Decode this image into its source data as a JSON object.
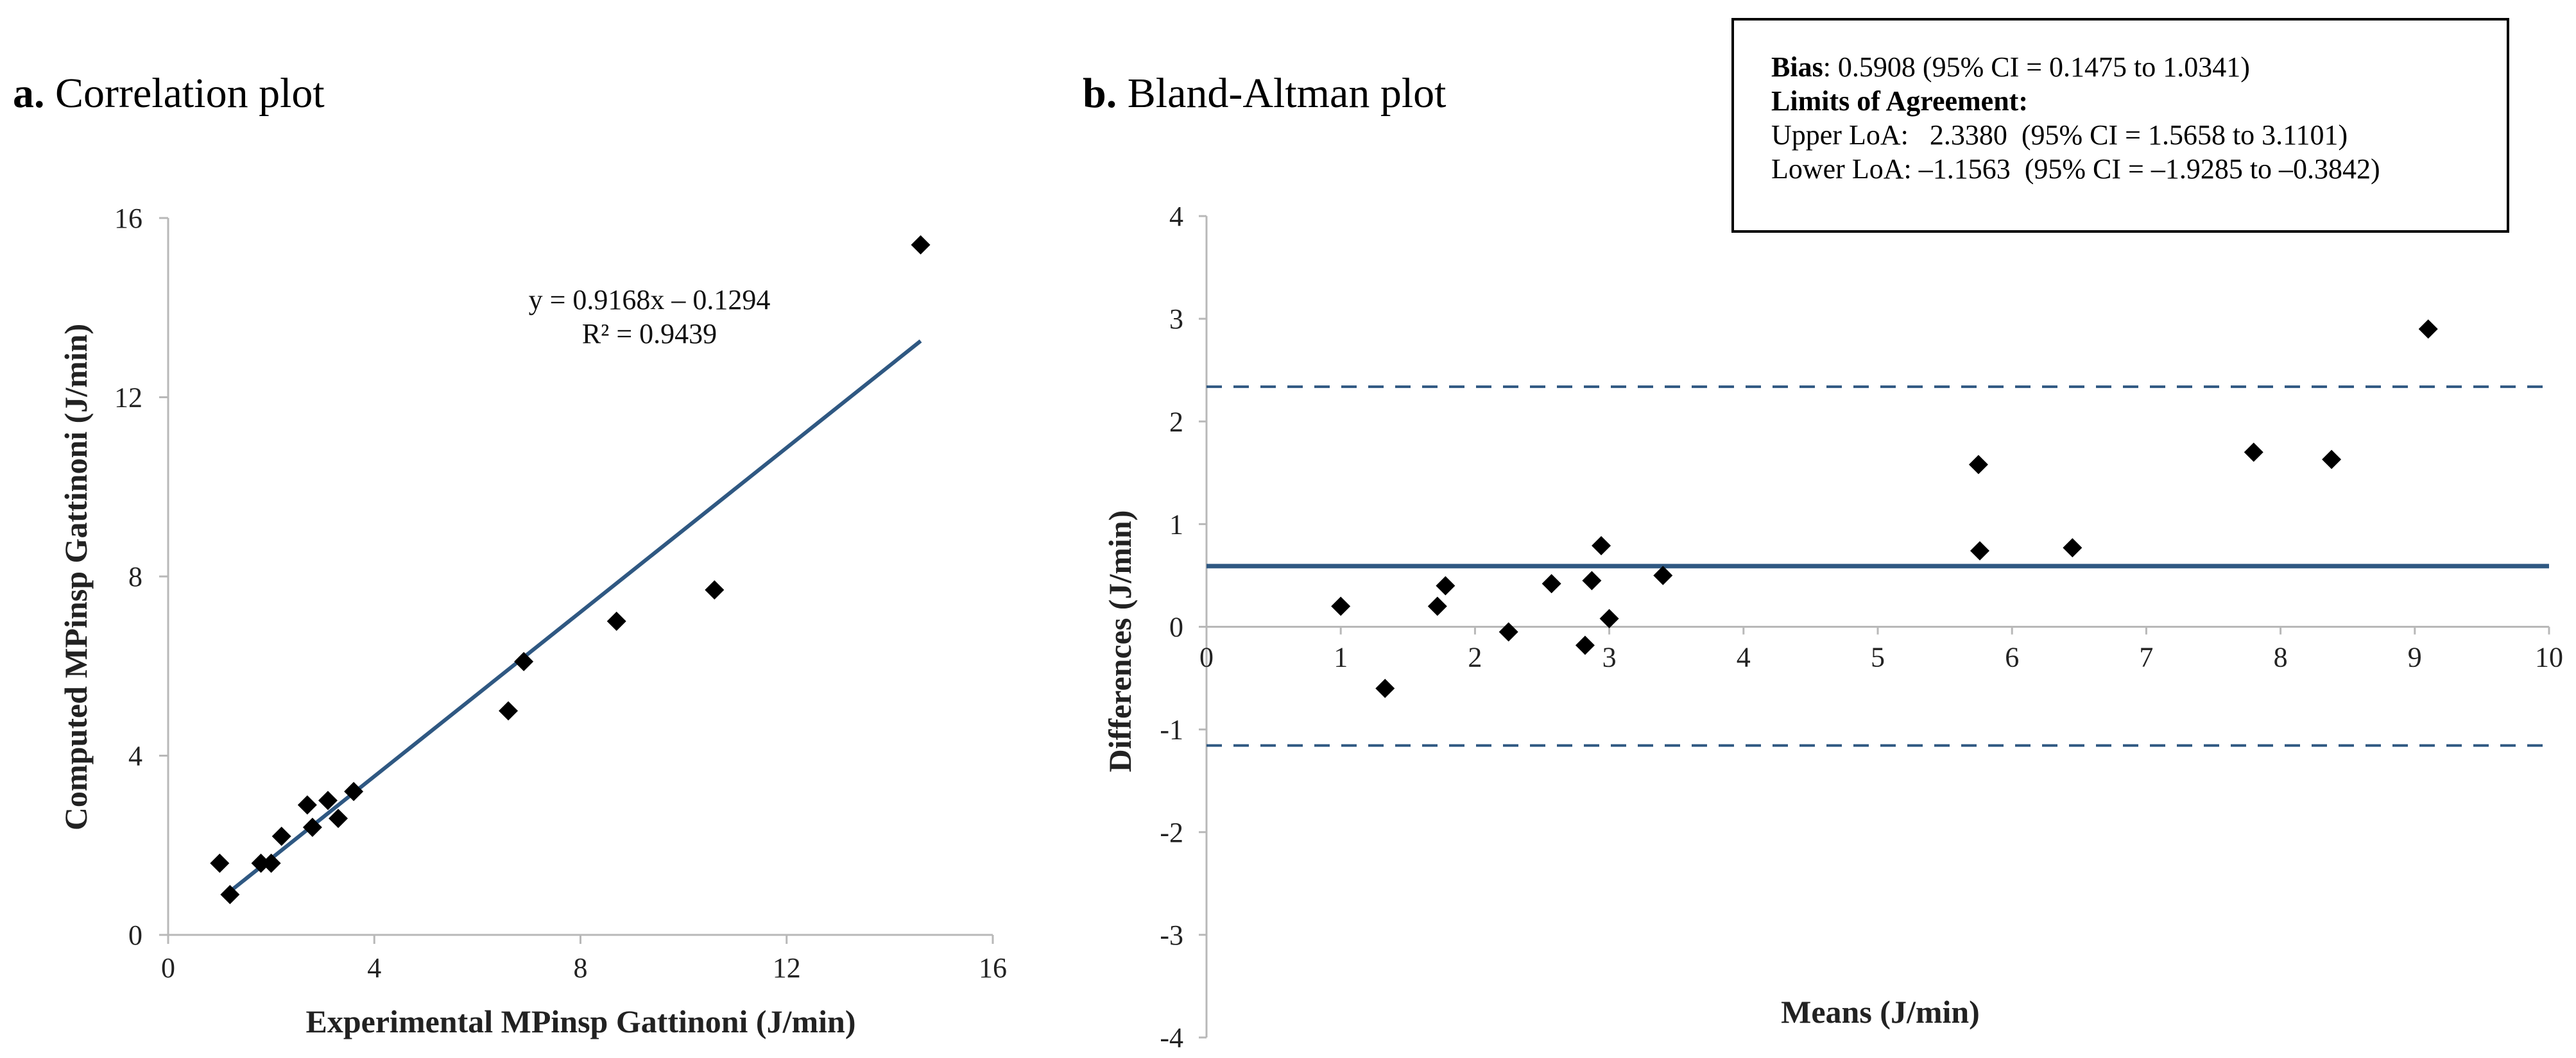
{
  "panels": [
    {
      "label": "a.",
      "title": "Correlation plot",
      "chart_data": {
        "type": "scatter",
        "title": "Correlation plot",
        "xlabel": "Experimental MPinsp Gattinoni (J/min)",
        "ylabel": "Computed MPinsp Gattinoni (J/min)",
        "xlim": [
          0,
          16
        ],
        "ylim": [
          0,
          16
        ],
        "x_ticks": [
          "0",
          "4",
          "8",
          "12",
          "16"
        ],
        "y_ticks": [
          "0",
          "4",
          "8",
          "12",
          "16"
        ],
        "grid": false,
        "series": [
          {
            "points": [
              [
                1.0,
                1.6
              ],
              [
                1.2,
                0.9
              ],
              [
                1.8,
                1.6
              ],
              [
                2.0,
                1.6
              ],
              [
                2.2,
                2.2
              ],
              [
                2.7,
                2.9
              ],
              [
                2.8,
                2.4
              ],
              [
                3.1,
                3.0
              ],
              [
                3.3,
                2.6
              ],
              [
                3.6,
                3.2
              ],
              [
                6.6,
                5.0
              ],
              [
                6.9,
                6.1
              ],
              [
                8.7,
                7.0
              ],
              [
                10.6,
                7.7
              ],
              [
                14.6,
                15.4
              ]
            ]
          }
        ],
        "trendline": {
          "slope": 0.9168,
          "intercept": -0.1294,
          "x_range": [
            1.1,
            14.6
          ],
          "equation": "y = 0.9168x – 0.1294",
          "r_squared": "R² = 0.9439",
          "color": "#2f5882"
        },
        "marker_color": "#000000"
      }
    },
    {
      "label": "b.",
      "title": "Bland-Altman plot",
      "chart_data": {
        "type": "scatter",
        "title": "Bland-Altman plot",
        "xlabel": "Means (J/min)",
        "ylabel": "Differences (J/min)",
        "xlim": [
          0,
          10
        ],
        "ylim": [
          -4,
          4
        ],
        "x_ticks": [
          "0",
          "1",
          "2",
          "3",
          "4",
          "5",
          "6",
          "7",
          "8",
          "9",
          "10"
        ],
        "y_ticks": [
          "4",
          "3",
          "2",
          "1",
          "0",
          "-1",
          "-2",
          "-3",
          "-4"
        ],
        "grid": false,
        "series": [
          {
            "points": [
              [
                1.0,
                0.2
              ],
              [
                1.33,
                -0.6
              ],
              [
                1.72,
                0.2
              ],
              [
                1.78,
                0.4
              ],
              [
                2.25,
                -0.05
              ],
              [
                2.57,
                0.42
              ],
              [
                2.82,
                -0.18
              ],
              [
                2.87,
                0.45
              ],
              [
                2.94,
                0.79
              ],
              [
                3.0,
                0.08
              ],
              [
                3.4,
                0.5
              ],
              [
                5.75,
                1.58
              ],
              [
                5.76,
                0.74
              ],
              [
                6.45,
                0.77
              ],
              [
                7.8,
                1.7
              ],
              [
                8.38,
                1.63
              ],
              [
                9.1,
                2.9
              ]
            ]
          }
        ],
        "bias_line": 0.5908,
        "upper_loa": 2.338,
        "lower_loa": -1.1563,
        "line_color": "#2f5882",
        "marker_color": "#000000"
      }
    }
  ],
  "stats_box": {
    "bias_label": "Bias",
    "bias_text": ":  0.5908  (95% CI =  0.1475  to  1.0341)",
    "loa_heading": "Limits of Agreement:",
    "upper_text": "Upper LoA:   2.3380  (95% CI = 1.5658 to 3.1101)",
    "lower_text": "Lower LoA: –1.1563  (95% CI = –1.9285 to –0.3842)"
  }
}
